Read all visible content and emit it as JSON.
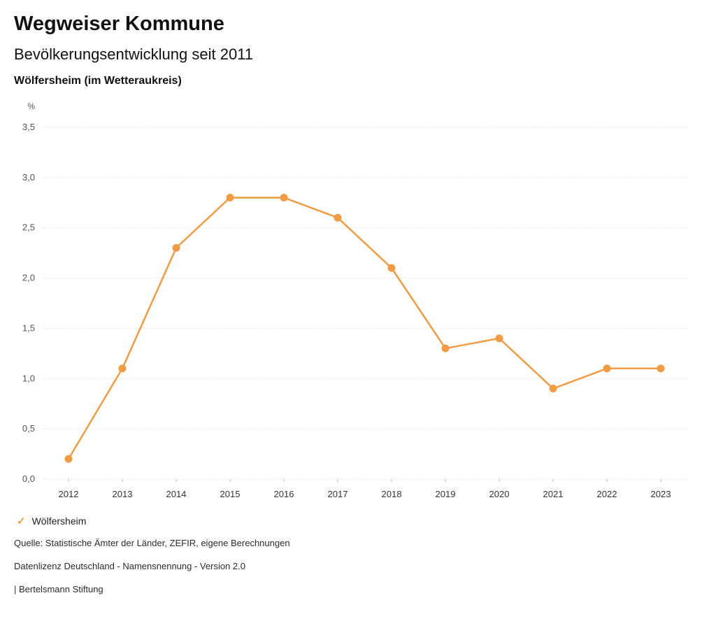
{
  "header": {
    "title": "Wegweiser Kommune",
    "subtitle": "Bevölkerungsentwicklung seit 2011",
    "region": "Wölfersheim (im Wetteraukreis)"
  },
  "chart_data": {
    "type": "line",
    "title": "Bevölkerungsentwicklung seit 2011",
    "unit_label": "%",
    "categories": [
      "2012",
      "2013",
      "2014",
      "2015",
      "2016",
      "2017",
      "2018",
      "2019",
      "2020",
      "2021",
      "2022",
      "2023"
    ],
    "series": [
      {
        "name": "Wölfersheim",
        "color": "#f09c42",
        "values": [
          0.2,
          1.1,
          2.3,
          2.8,
          2.8,
          2.6,
          2.1,
          1.3,
          1.4,
          0.9,
          1.1,
          1.1
        ]
      }
    ],
    "ylim": [
      0,
      3.5
    ],
    "ytick_step": 0.5,
    "ytick_labels": [
      "0,0",
      "0,5",
      "1,0",
      "1,5",
      "2,0",
      "2,5",
      "3,0",
      "3,5"
    ],
    "grid": "horizontal-dotted",
    "legend_position": "bottom-left"
  },
  "legend": {
    "check_icon": "✓",
    "label": "Wölfersheim"
  },
  "footer": {
    "source": "Quelle: Statistische Ämter der Länder, ZEFIR, eigene Berechnungen",
    "license": "Datenlizenz Deutschland - Namensnennung - Version 2.0",
    "attribution": "| Bertelsmann Stiftung"
  }
}
